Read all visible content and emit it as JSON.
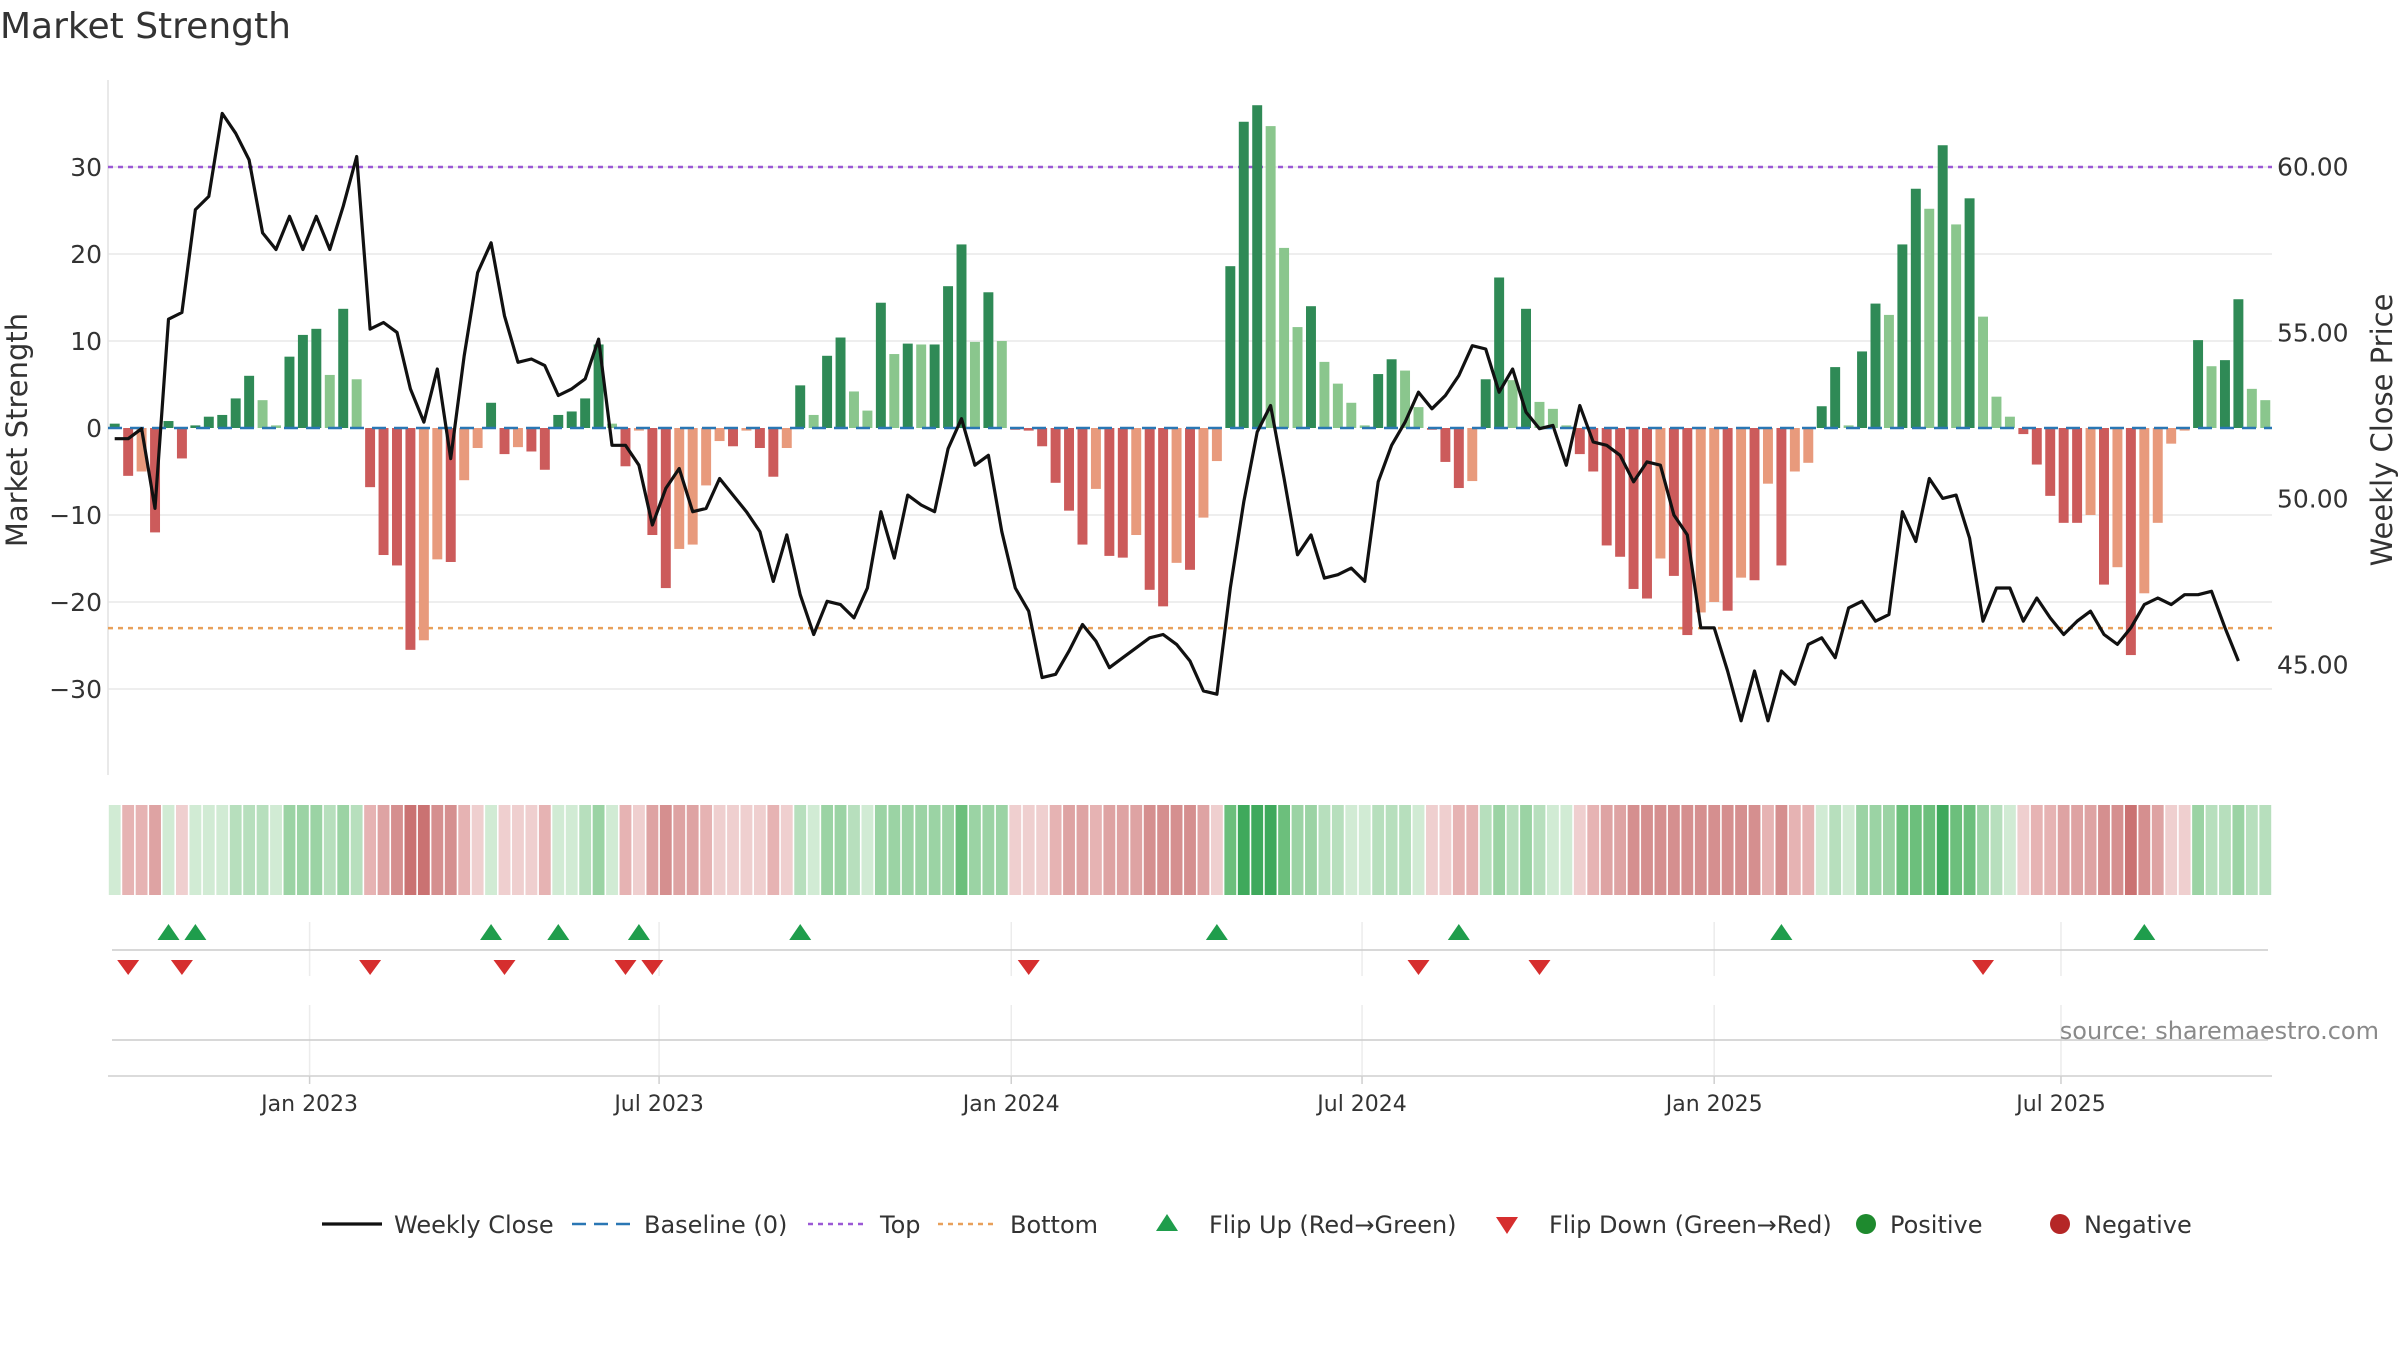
{
  "chart_data": {
    "type": "bar",
    "title": "Market Strength",
    "ylabel_left": "Market Strength",
    "ylabel_right": "Weekly Close Price",
    "ylim_left": [
      -40,
      40
    ],
    "ylim_right": [
      41.0,
      63.1
    ],
    "yticks_left": [
      30,
      20,
      10,
      0,
      -10,
      -20,
      -30
    ],
    "ytick_labels_left": [
      "30",
      "20",
      "10",
      "0",
      "−10",
      "−20",
      "−30"
    ],
    "yticks_right": [
      60,
      55,
      50,
      45
    ],
    "ytick_labels_right": [
      "60.00",
      "55.00",
      "50.00",
      "45.00"
    ],
    "top_level": 30,
    "bottom_level": -23,
    "x_date_ticks": [
      {
        "label": "Jan 2023",
        "week": 14.5
      },
      {
        "label": "Jul 2023",
        "week": 40.5
      },
      {
        "label": "Jan 2024",
        "week": 66.7
      },
      {
        "label": "Jul 2024",
        "week": 92.8
      },
      {
        "label": "Jan 2025",
        "week": 119.0
      },
      {
        "label": "Jul 2025",
        "week": 144.8
      }
    ],
    "strength": [
      0.5,
      -5.5,
      -5,
      -12,
      0.8,
      -3.5,
      0.3,
      1.3,
      1.5,
      3.4,
      6,
      3.2,
      0.3,
      8.2,
      10.7,
      11.4,
      6.1,
      13.7,
      5.6,
      -6.8,
      -14.6,
      -15.8,
      -25.5,
      -24.4,
      -15.1,
      -15.4,
      -6,
      -2.3,
      2.9,
      -3,
      -2.2,
      -2.7,
      -4.8,
      1.5,
      1.9,
      3.4,
      9.6,
      0.5,
      -4.4,
      -0.3,
      -12.3,
      -18.4,
      -13.9,
      -13.4,
      -6.6,
      -1.5,
      -2.1,
      -0.3,
      -2.3,
      -5.6,
      -2.3,
      4.9,
      1.5,
      8.3,
      10.4,
      4.2,
      2,
      14.4,
      8.5,
      9.7,
      9.6,
      9.6,
      16.3,
      21.1,
      9.9,
      15.6,
      10,
      -0.2,
      -0.3,
      -2.1,
      -6.3,
      -9.5,
      -13.4,
      -7,
      -14.7,
      -14.9,
      -12.3,
      -18.6,
      -20.5,
      -15.5,
      -16.3,
      -10.3,
      -3.8,
      18.6,
      35.2,
      37.1,
      34.7,
      20.7,
      11.6,
      14,
      7.6,
      5.1,
      2.9,
      0.3,
      6.2,
      7.9,
      6.6,
      2.4,
      -0.2,
      -3.9,
      -6.9,
      -6.1,
      5.6,
      17.3,
      5.5,
      13.7,
      3,
      2.2,
      0.3,
      -3,
      -5,
      -13.5,
      -14.8,
      -18.5,
      -19.6,
      -15,
      -17,
      -23.8,
      -21.2,
      -20,
      -21,
      -17.2,
      -17.5,
      -6.4,
      -15.8,
      -5,
      -4,
      2.5,
      7,
      0.3,
      8.8,
      14.3,
      13,
      21.1,
      27.5,
      25.2,
      32.5,
      23.4,
      26.4,
      12.8,
      3.6,
      1.3,
      -0.7,
      -4.2,
      -7.8,
      -10.9,
      -10.9,
      -10,
      -18,
      -16,
      -26.1,
      -19,
      -10.9,
      -1.8,
      -0.3,
      10.1,
      7.1,
      7.8,
      14.8,
      4.5,
      3.2
    ],
    "series_weekly_close": {
      "name": "Weekly Close",
      "values": [
        51.8,
        51.8,
        52.1,
        49.7,
        55.4,
        55.6,
        58.7,
        59.1,
        61.6,
        61.0,
        60.2,
        58.0,
        57.5,
        58.5,
        57.5,
        58.5,
        57.5,
        58.8,
        60.3,
        55.1,
        55.3,
        55.0,
        53.3,
        52.3,
        53.9,
        51.2,
        54.3,
        56.8,
        57.7,
        55.5,
        54.1,
        54.2,
        54.0,
        53.1,
        53.3,
        53.6,
        54.8,
        51.6,
        51.6,
        51.0,
        49.2,
        50.3,
        50.9,
        49.6,
        49.7,
        50.6,
        50.1,
        49.6,
        49.0,
        47.5,
        48.9,
        47.1,
        45.9,
        46.9,
        46.8,
        46.4,
        47.3,
        49.6,
        48.2,
        50.1,
        49.8,
        49.6,
        51.5,
        52.4,
        51.0,
        51.3,
        49.0,
        47.3,
        46.6,
        44.6,
        44.7,
        45.4,
        46.2,
        45.7,
        44.9,
        45.2,
        45.5,
        45.8,
        45.9,
        45.6,
        45.1,
        44.2,
        44.1,
        47.3,
        49.9,
        52.0,
        52.8,
        50.6,
        48.3,
        48.9,
        47.6,
        47.7,
        47.9,
        47.5,
        50.5,
        51.6,
        52.3,
        53.2,
        52.7,
        53.1,
        53.7,
        54.6,
        54.5,
        53.2,
        53.9,
        52.6,
        52.1,
        52.2,
        51.0,
        52.8,
        51.7,
        51.6,
        51.3,
        50.5,
        51.1,
        51.0,
        49.5,
        48.9,
        46.1,
        46.1,
        44.8,
        43.3,
        44.8,
        43.3,
        44.8,
        44.4,
        45.6,
        45.8,
        45.2,
        46.7,
        46.9,
        46.3,
        46.5,
        49.6,
        48.7,
        50.6,
        50.0,
        50.1,
        48.8,
        46.3,
        47.3,
        47.3,
        46.3,
        47.0,
        46.4,
        45.9,
        46.3,
        46.6,
        45.9,
        45.6,
        46.1,
        46.8,
        47.0,
        46.8,
        47.1,
        47.1,
        47.2,
        46.1,
        45.1
      ]
    },
    "heat_strip": {
      "colors": {
        "green_5": "#3fa95c",
        "green_4": "#6cbf7c",
        "green_3": "#9bd3a4",
        "green_2": "#b7dfbd",
        "green_1": "#d1ebd4",
        "red_1": "#efcfcf",
        "red_2": "#e6b3b3",
        "red_3": "#dea3a3",
        "red_4": "#d58f8f",
        "red_5": "#ca7272"
      }
    },
    "flip_up_weeks": [
      4,
      6,
      28,
      33,
      39,
      51,
      82,
      100,
      124,
      151
    ],
    "flip_down_weeks": [
      1,
      5,
      19,
      29,
      38,
      40,
      68,
      97,
      106,
      139
    ],
    "colors": {
      "strong_green": "#2f8a56",
      "light_green": "#8ac68d",
      "strong_red": "#cc5b5b",
      "light_red": "#e89a7c",
      "line": "#111111",
      "baseline": "#2a77b4",
      "top": "#9b59d6",
      "bottom": "#e8a05a",
      "flip_up": "#1f9d4c",
      "flip_down": "#d62e2e",
      "positive": "#1e8a2e",
      "negative": "#b52626",
      "grid": "#e8e8e8"
    },
    "legend": [
      {
        "key": "weekly_close",
        "label": "Weekly Close"
      },
      {
        "key": "baseline",
        "label": "Baseline (0)"
      },
      {
        "key": "top",
        "label": "Top"
      },
      {
        "key": "bottom",
        "label": "Bottom"
      },
      {
        "key": "flip_up",
        "label": "Flip Up (Red→Green)"
      },
      {
        "key": "flip_down",
        "label": "Flip Down (Green→Red)"
      },
      {
        "key": "positive",
        "label": "Positive"
      },
      {
        "key": "negative",
        "label": "Negative"
      }
    ],
    "source_text": "source: sharemaestro.com"
  }
}
